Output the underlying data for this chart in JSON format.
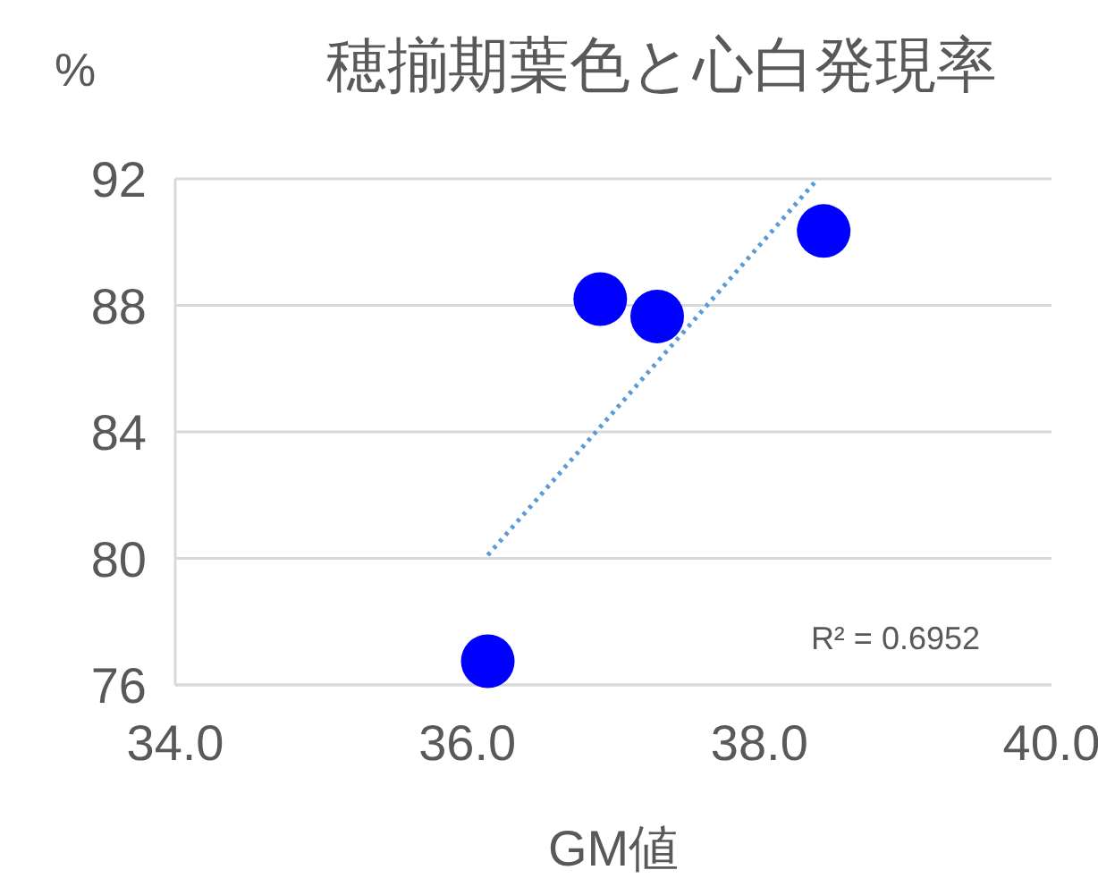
{
  "chart_data": {
    "type": "scatter",
    "title": "穂揃期葉色と心白発現率",
    "xlabel": "GM値",
    "ylabel": "%",
    "xlim": [
      34,
      40
    ],
    "xticks": [
      {
        "value": 34,
        "label": "34.0"
      },
      {
        "value": 36,
        "label": "36.0"
      },
      {
        "value": 38,
        "label": "38.0"
      },
      {
        "value": 40,
        "label": "40.0"
      }
    ],
    "ylim": [
      76,
      92
    ],
    "yticks": [
      76,
      80,
      84,
      88,
      92
    ],
    "grid": "y",
    "marker": "circle",
    "series": [
      {
        "color": "#0000ff",
        "x": [
          36.14,
          36.91,
          37.3,
          38.44
        ],
        "values": [
          76.75,
          88.2,
          87.65,
          90.35
        ]
      },
      {
        "type": "line",
        "color": "#5b9bd5",
        "line_style": "dotted",
        "marker": "none",
        "x": [
          36.14,
          38.4
        ],
        "values": [
          80.1,
          92
        ]
      }
    ],
    "annotations": [
      "R² = 0.6952"
    ]
  }
}
